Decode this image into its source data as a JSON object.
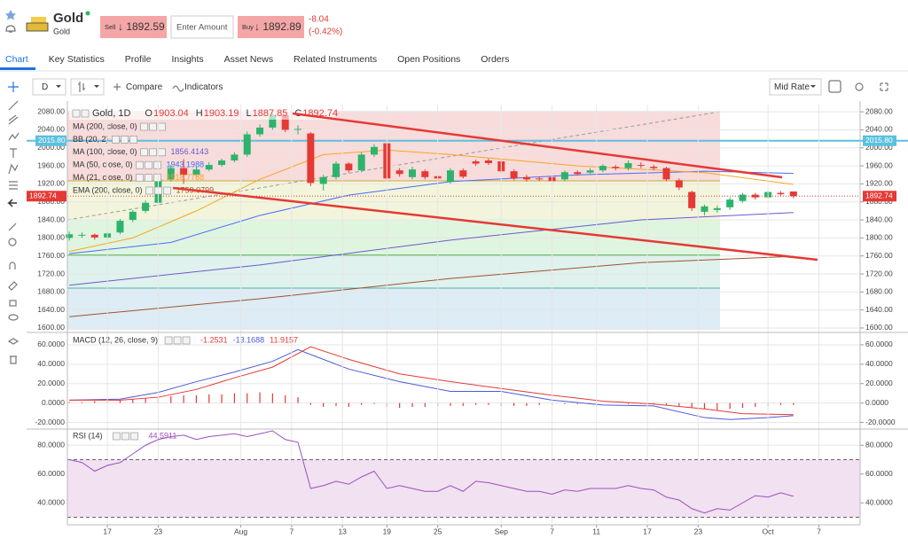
{
  "header": {
    "name": "Gold",
    "subtitle": "Gold",
    "sell": "Sell",
    "sell_price": "↓ 1892.59",
    "amount_placeholder": "Enter Amount",
    "buy": "Buy",
    "buy_price": "↓ 1892.89",
    "change": "-8.04",
    "change_pct": "(-0.42%)"
  },
  "tabs": [
    "Chart",
    "Key Statistics",
    "Profile",
    "Insights",
    "Asset News",
    "Related Instruments",
    "Open Positions",
    "Orders"
  ],
  "toolbar": {
    "interval": "D",
    "compare": "Compare",
    "indicators": "Indicators",
    "rate": "Mid Rate"
  },
  "chart_data": [
    {
      "type": "candlestick",
      "title": "Gold, 1D",
      "ohlc_letters": [
        "O",
        "H",
        "L",
        "C"
      ],
      "up_color": "#2db36b",
      "down_color": "#e53935",
      "grid": true,
      "xlim": [
        -0.15,
        62.25
      ],
      "ylim": [
        1596,
        2096
      ],
      "yticks": [
        {
          "value": 1600,
          "label": "1600.00"
        },
        {
          "value": 1640,
          "label": "1640.00"
        },
        {
          "value": 1680,
          "label": "1680.00"
        },
        {
          "value": 1720,
          "label": "1720.00"
        },
        {
          "value": 1760,
          "label": "1760.00"
        },
        {
          "value": 1800,
          "label": "1800.00"
        },
        {
          "value": 1840,
          "label": "1840.00"
        },
        {
          "value": 1880,
          "label": "1880.00"
        },
        {
          "value": 1920,
          "label": "1920.00"
        },
        {
          "value": 1960,
          "label": "1960.00"
        },
        {
          "value": 2000,
          "label": "2000.00"
        },
        {
          "value": 2040,
          "label": "2040.00"
        },
        {
          "value": 2080,
          "label": "2080.00"
        }
      ],
      "open": [
        1800,
        1806,
        1807,
        1801,
        1812,
        1840,
        1860,
        1878,
        1930,
        1955,
        1940,
        1952,
        1962,
        1972,
        1985,
        2030,
        2045,
        2072,
        2040,
        2032,
        1920,
        1935,
        1965,
        1950,
        1985,
        2010,
        1950,
        1935,
        1948,
        1937,
        1925,
        1950,
        1970,
        1972,
        1970,
        1948,
        1935,
        1932,
        1935,
        1930,
        1946,
        1945,
        1950,
        1958,
        1955,
        1962,
        1958,
        1955,
        1928,
        1902,
        1858,
        1862,
        1868,
        1882,
        1896,
        1890,
        1900,
        1903.04
      ],
      "high": [
        1814,
        1812,
        1810,
        1815,
        1842,
        1862,
        1883,
        1935,
        1962,
        1975,
        1958,
        1968,
        1976,
        1990,
        2036,
        2052,
        2078,
        2075,
        2050,
        2035,
        1940,
        1970,
        1968,
        1990,
        2008,
        2012,
        1955,
        1958,
        1952,
        1940,
        1955,
        1954,
        1974,
        1976,
        1974,
        1952,
        1940,
        1936,
        1938,
        1950,
        1950,
        1955,
        1964,
        1962,
        1972,
        1968,
        1962,
        1958,
        1932,
        1905,
        1874,
        1872,
        1890,
        1900,
        1900,
        1906,
        1904,
        1903.19
      ],
      "low": [
        1794,
        1800,
        1796,
        1796,
        1808,
        1835,
        1855,
        1872,
        1925,
        1920,
        1935,
        1948,
        1958,
        1968,
        1980,
        2025,
        2040,
        2035,
        2030,
        1915,
        1905,
        1930,
        1945,
        1946,
        1980,
        1928,
        1936,
        1930,
        1930,
        1926,
        1920,
        1932,
        1960,
        1962,
        1944,
        1928,
        1925,
        1926,
        1922,
        1926,
        1938,
        1940,
        1946,
        1950,
        1950,
        1955,
        1950,
        1926,
        1906,
        1860,
        1850,
        1856,
        1862,
        1878,
        1885,
        1886,
        1892,
        1887.85
      ],
      "close": [
        1808,
        1807,
        1801,
        1810,
        1838,
        1858,
        1878,
        1930,
        1955,
        1940,
        1952,
        1962,
        1972,
        1985,
        2030,
        2045,
        2072,
        2040,
        2042,
        1922,
        1935,
        1965,
        1950,
        1985,
        2002,
        1932,
        1942,
        1952,
        1935,
        1932,
        1950,
        1936,
        1965,
        1966,
        1948,
        1932,
        1930,
        1931,
        1926,
        1946,
        1942,
        1950,
        1960,
        1955,
        1966,
        1960,
        1955,
        1930,
        1912,
        1866,
        1870,
        1866,
        1885,
        1896,
        1890,
        1902,
        1897,
        1892.74
      ],
      "other_studies": [
        "MA (200, close, 0)",
        "BB (20, 2)"
      ],
      "series": [
        {
          "name": "MA (100, close, 0)",
          "color": "#6a5acd",
          "x": [
            0,
            15,
            30,
            45,
            57
          ],
          "values": [
            1695,
            1740,
            1795,
            1840,
            1856.4143
          ]
        },
        {
          "name": "MA (50, close, 0)",
          "color": "#4a6cf7",
          "x": [
            0,
            8,
            15,
            22,
            30,
            40,
            50,
            57
          ],
          "values": [
            1765,
            1790,
            1850,
            1895,
            1925,
            1940,
            1948,
            1943.1988
          ]
        },
        {
          "name": "MA (21, close, 0)",
          "color": "#f5a623",
          "x": [
            0,
            5,
            10,
            15,
            20,
            25,
            30,
            40,
            50,
            57
          ],
          "values": [
            1770,
            1800,
            1860,
            1930,
            1985,
            1995,
            1985,
            1960,
            1945,
            1918.7788
          ]
        },
        {
          "name": "EMA (200, close, 0)",
          "color": "#a0522d",
          "x": [
            0,
            15,
            30,
            45,
            57
          ],
          "values": [
            1625,
            1665,
            1710,
            1745,
            1759.0799
          ]
        }
      ],
      "hlines": [
        {
          "value": 2015.8,
          "label": "2015.80",
          "color": "#5bc0de"
        }
      ]
    },
    {
      "type": "macd",
      "title": "MACD (12, 26, close, 9)",
      "readouts": [
        "-1.2531",
        "-13.1688",
        "11.9157"
      ],
      "grid": true,
      "xlim": [
        -0.15,
        62.25
      ],
      "ylim": [
        -25,
        70
      ],
      "yticks": [
        {
          "value": 60,
          "label": "60.0000"
        },
        {
          "value": 40,
          "label": "40.0000"
        },
        {
          "value": 20,
          "label": "20.0000"
        },
        {
          "value": 0,
          "label": "0.0000"
        },
        {
          "value": -20,
          "label": "-20.0000"
        }
      ],
      "histogram_color": "#e53935",
      "histogram": [
        1,
        1,
        2,
        2,
        3,
        4,
        5,
        6,
        7,
        8,
        8,
        9,
        9,
        10,
        10,
        11,
        10,
        8,
        6,
        -2,
        -4,
        -3,
        -4,
        -2,
        -1,
        -4,
        -5,
        -4,
        -4,
        -3,
        -3,
        -3,
        -2,
        -2,
        -3,
        -3,
        -3,
        -2,
        -2,
        -1,
        -1,
        -1,
        0,
        0,
        -1,
        -1,
        -1,
        -2,
        -3,
        -5,
        -6,
        -7,
        -6,
        -5,
        -4,
        -3,
        -2,
        -2
      ],
      "macd": {
        "color": "#4a5bd8",
        "x": [
          0,
          4,
          7,
          10,
          13,
          16,
          18,
          20,
          22,
          26,
          30,
          34,
          38,
          42,
          46,
          50,
          52,
          55,
          57
        ],
        "values": [
          3,
          4,
          11,
          22,
          32,
          43,
          55,
          45,
          35,
          22,
          12,
          12,
          3,
          -2,
          -3,
          -15,
          -17,
          -15,
          -13
        ]
      },
      "signal": {
        "color": "#e53935",
        "x": [
          0,
          4,
          7,
          10,
          13,
          16,
          19,
          22,
          26,
          30,
          34,
          38,
          42,
          46,
          50,
          53,
          57
        ],
        "values": [
          3,
          3,
          6,
          14,
          26,
          37,
          58,
          45,
          30,
          22,
          15,
          8,
          2,
          -1,
          -6,
          -11,
          -12
        ]
      }
    },
    {
      "type": "rsi",
      "title": "RSI (14)",
      "color": "#9b4fc0",
      "grid": true,
      "xlim": [
        -0.15,
        62.25
      ],
      "ylim": [
        26,
        90
      ],
      "yticks": [
        {
          "value": 80,
          "label": "80.0000"
        },
        {
          "value": 60,
          "label": "60.0000"
        },
        {
          "value": 40,
          "label": "40.0000"
        }
      ],
      "levels": [
        70,
        30
      ],
      "values": [
        70,
        68,
        62,
        66,
        68,
        74,
        80,
        84,
        86,
        87,
        84,
        86,
        87,
        88,
        86,
        88,
        90,
        84,
        82,
        50,
        52,
        55,
        53,
        58,
        62,
        50,
        52,
        50,
        48,
        48,
        52,
        48,
        55,
        54,
        52,
        50,
        48,
        48,
        46,
        49,
        48,
        50,
        50,
        50,
        52,
        50,
        49,
        44,
        42,
        36,
        33,
        36,
        35,
        40,
        45,
        44,
        47,
        44.5911
      ],
      "xticks": [
        {
          "value": 3,
          "label": "17"
        },
        {
          "value": 7,
          "label": "23"
        },
        {
          "value": 13.5,
          "label": "Aug"
        },
        {
          "value": 17.5,
          "label": "7"
        },
        {
          "value": 21.5,
          "label": "13"
        },
        {
          "value": 25,
          "label": "19"
        },
        {
          "value": 29,
          "label": "25"
        },
        {
          "value": 34,
          "label": "Sep"
        },
        {
          "value": 38,
          "label": "7"
        },
        {
          "value": 41.5,
          "label": "11"
        },
        {
          "value": 45.5,
          "label": "17"
        },
        {
          "value": 49.5,
          "label": "23"
        },
        {
          "value": 55,
          "label": "Oct"
        },
        {
          "value": 59,
          "label": "7"
        }
      ]
    }
  ]
}
